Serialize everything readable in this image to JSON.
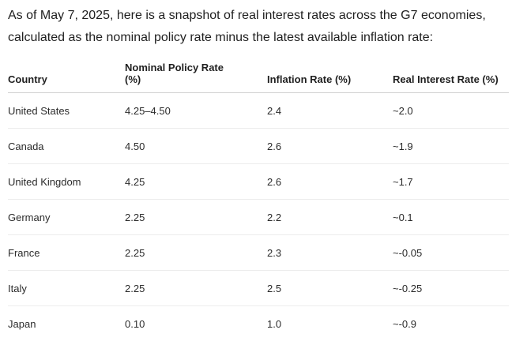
{
  "intro": {
    "line1": "As of May 7, 2025, here is a snapshot of real interest rates across the G7 economies,",
    "line2": "calculated as the nominal policy rate minus the latest available inflation rate:"
  },
  "table": {
    "headers": {
      "country": "Country",
      "nominal_line1": "Nominal Policy Rate",
      "nominal_line2": "(%)",
      "inflation": "Inflation Rate (%)",
      "real": "Real Interest Rate (%)"
    },
    "rows": [
      {
        "country": "United States",
        "nominal": "4.25–4.50",
        "inflation": "2.4",
        "real": "~2.0"
      },
      {
        "country": "Canada",
        "nominal": "4.50",
        "inflation": "2.6",
        "real": "~1.9"
      },
      {
        "country": "United Kingdom",
        "nominal": "4.25",
        "inflation": "2.6",
        "real": "~1.7"
      },
      {
        "country": "Germany",
        "nominal": "2.25",
        "inflation": "2.2",
        "real": "~0.1"
      },
      {
        "country": "France",
        "nominal": "2.25",
        "inflation": "2.3",
        "real": "~-0.05"
      },
      {
        "country": "Italy",
        "nominal": "2.25",
        "inflation": "2.5",
        "real": "~-0.25"
      },
      {
        "country": "Japan",
        "nominal": "0.10",
        "inflation": "1.0",
        "real": "~-0.9"
      }
    ]
  }
}
